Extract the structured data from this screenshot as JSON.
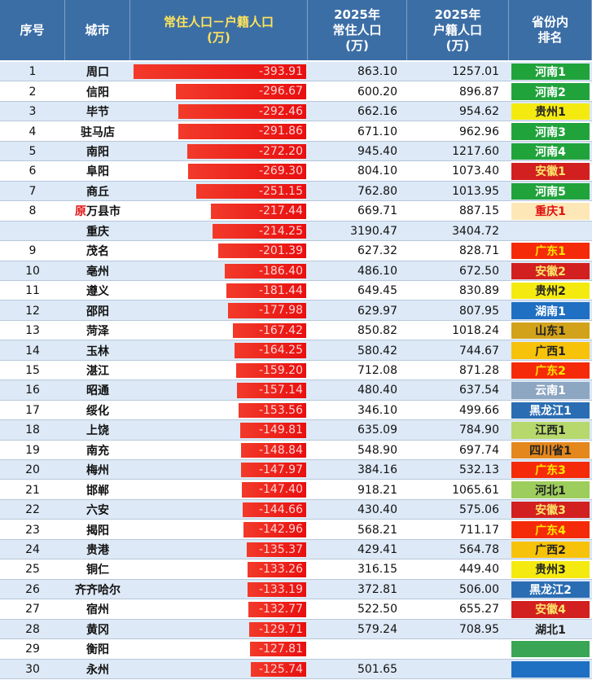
{
  "header": {
    "columns": [
      [
        "序号"
      ],
      [
        "城市"
      ],
      [
        "常住人口－户籍人口",
        "(万)"
      ],
      [
        "2025年",
        "常住人口",
        "(万)"
      ],
      [
        "2025年",
        "户籍人口",
        "(万)"
      ],
      [
        "省份内",
        "排名"
      ]
    ]
  },
  "table": {
    "rows": [
      {
        "no": "1",
        "city": "周口",
        "diff": "-393.91",
        "resident": "863.10",
        "registered": "1257.01",
        "province_rank": "河南1",
        "badge_color": "#21a33c",
        "badge_text_color": "#ffffff"
      },
      {
        "no": "2",
        "city": "信阳",
        "diff": "-296.67",
        "resident": "600.20",
        "registered": "896.87",
        "province_rank": "河南2",
        "badge_color": "#21a33c",
        "badge_text_color": "#ffffff"
      },
      {
        "no": "3",
        "city": "毕节",
        "diff": "-292.46",
        "resident": "662.16",
        "registered": "954.62",
        "province_rank": "贵州1",
        "badge_color": "#f4ea10",
        "badge_text_color": "#222222"
      },
      {
        "no": "4",
        "city": "驻马店",
        "diff": "-291.86",
        "resident": "671.10",
        "registered": "962.96",
        "province_rank": "河南3",
        "badge_color": "#21a33c",
        "badge_text_color": "#ffffff"
      },
      {
        "no": "5",
        "city": "南阳",
        "diff": "-272.20",
        "resident": "945.40",
        "registered": "1217.60",
        "province_rank": "河南4",
        "badge_color": "#21a33c",
        "badge_text_color": "#ffffff"
      },
      {
        "no": "6",
        "city": "阜阳",
        "diff": "-269.30",
        "resident": "804.10",
        "registered": "1073.40",
        "province_rank": "安徽1",
        "badge_color": "#d21f1f",
        "badge_text_color": "#ffe36a"
      },
      {
        "no": "7",
        "city": "商丘",
        "diff": "-251.15",
        "resident": "762.80",
        "registered": "1013.95",
        "province_rank": "河南5",
        "badge_color": "#21a33c",
        "badge_text_color": "#ffffff"
      },
      {
        "no": "8",
        "prefix": "原",
        "city": "万县市",
        "diff": "-217.44",
        "resident": "669.71",
        "registered": "887.15",
        "province_rank": "重庆1",
        "badge_color": "#fde7b6",
        "badge_text_color": "#e01010"
      },
      {
        "no": null,
        "city": "重庆",
        "diff": "-214.25",
        "resident": "3190.47",
        "registered": "3404.72",
        "province_rank": null,
        "badge_color": null,
        "badge_text_color": null
      },
      {
        "no": "9",
        "city": "茂名",
        "diff": "-201.39",
        "resident": "627.32",
        "registered": "828.71",
        "province_rank": "广东1",
        "badge_color": "#f52a08",
        "badge_text_color": "#ffe600"
      },
      {
        "no": "10",
        "city": "亳州",
        "diff": "-186.40",
        "resident": "486.10",
        "registered": "672.50",
        "province_rank": "安徽2",
        "badge_color": "#d21f1f",
        "badge_text_color": "#ffe36a"
      },
      {
        "no": "11",
        "city": "遵义",
        "diff": "-181.44",
        "resident": "649.45",
        "registered": "830.89",
        "province_rank": "贵州2",
        "badge_color": "#f4ea10",
        "badge_text_color": "#222222"
      },
      {
        "no": "12",
        "city": "邵阳",
        "diff": "-177.98",
        "resident": "629.97",
        "registered": "807.95",
        "province_rank": "湖南1",
        "badge_color": "#1f6fc2",
        "badge_text_color": "#ffffff"
      },
      {
        "no": "13",
        "city": "菏泽",
        "diff": "-167.42",
        "resident": "850.82",
        "registered": "1018.24",
        "province_rank": "山东1",
        "badge_color": "#d2a21a",
        "badge_text_color": "#222222"
      },
      {
        "no": "14",
        "city": "玉林",
        "diff": "-164.25",
        "resident": "580.42",
        "registered": "744.67",
        "province_rank": "广西1",
        "badge_color": "#f7c20a",
        "badge_text_color": "#222222"
      },
      {
        "no": "15",
        "city": "湛江",
        "diff": "-159.20",
        "resident": "712.08",
        "registered": "871.28",
        "province_rank": "广东2",
        "badge_color": "#f52a08",
        "badge_text_color": "#ffe600"
      },
      {
        "no": "16",
        "city": "昭通",
        "diff": "-157.14",
        "resident": "480.40",
        "registered": "637.54",
        "province_rank": "云南1",
        "badge_color": "#8da6c2",
        "badge_text_color": "#ffffff"
      },
      {
        "no": "17",
        "city": "绥化",
        "diff": "-153.56",
        "resident": "346.10",
        "registered": "499.66",
        "province_rank": "黑龙江1",
        "badge_color": "#2b6db3",
        "badge_text_color": "#ffffff"
      },
      {
        "no": "18",
        "city": "上饶",
        "diff": "-149.81",
        "resident": "635.09",
        "registered": "784.90",
        "province_rank": "江西1",
        "badge_color": "#b6d86c",
        "badge_text_color": "#222222"
      },
      {
        "no": "19",
        "city": "南充",
        "diff": "-148.84",
        "resident": "548.90",
        "registered": "697.74",
        "province_rank": "四川省1",
        "badge_color": "#e4871c",
        "badge_text_color": "#222222"
      },
      {
        "no": "20",
        "city": "梅州",
        "diff": "-147.97",
        "resident": "384.16",
        "registered": "532.13",
        "province_rank": "广东3",
        "badge_color": "#f52a08",
        "badge_text_color": "#ffe600"
      },
      {
        "no": "21",
        "city": "邯郸",
        "diff": "-147.40",
        "resident": "918.21",
        "registered": "1065.61",
        "province_rank": "河北1",
        "badge_color": "#9dcd5c",
        "badge_text_color": "#222222"
      },
      {
        "no": "22",
        "city": "六安",
        "diff": "-144.66",
        "resident": "430.40",
        "registered": "575.06",
        "province_rank": "安徽3",
        "badge_color": "#d21f1f",
        "badge_text_color": "#ffe36a"
      },
      {
        "no": "23",
        "city": "揭阳",
        "diff": "-142.96",
        "resident": "568.21",
        "registered": "711.17",
        "province_rank": "广东4",
        "badge_color": "#f52a08",
        "badge_text_color": "#ffe600"
      },
      {
        "no": "24",
        "city": "贵港",
        "diff": "-135.37",
        "resident": "429.41",
        "registered": "564.78",
        "province_rank": "广西2",
        "badge_color": "#f7c20a",
        "badge_text_color": "#222222"
      },
      {
        "no": "25",
        "city": "铜仁",
        "diff": "-133.26",
        "resident": "316.15",
        "registered": "449.40",
        "province_rank": "贵州3",
        "badge_color": "#f4ea10",
        "badge_text_color": "#222222"
      },
      {
        "no": "26",
        "city": "齐齐哈尔",
        "diff": "-133.19",
        "resident": "372.81",
        "registered": "506.00",
        "province_rank": "黑龙江2",
        "badge_color": "#2b6db3",
        "badge_text_color": "#ffffff"
      },
      {
        "no": "27",
        "city": "宿州",
        "diff": "-132.77",
        "resident": "522.50",
        "registered": "655.27",
        "province_rank": "安徽4",
        "badge_color": "#d21f1f",
        "badge_text_color": "#ffe36a"
      },
      {
        "no": "28",
        "city": "黄冈",
        "diff": "-129.71",
        "resident": "579.24",
        "registered": "708.95",
        "province_rank": "湖北1",
        "badge_color": null,
        "badge_text_color": "#222222"
      },
      {
        "no": "29",
        "city": "衡阳",
        "diff": "-127.81",
        "resident": null,
        "registered": null,
        "province_rank": null,
        "badge_color": "#3aa655",
        "badge_text_color": null
      },
      {
        "no": "30",
        "city": "永州",
        "diff": "-125.74",
        "resident": "501.65",
        "registered": null,
        "province_rank": null,
        "badge_color": "#1f6fc2",
        "badge_text_color": null
      }
    ]
  }
}
